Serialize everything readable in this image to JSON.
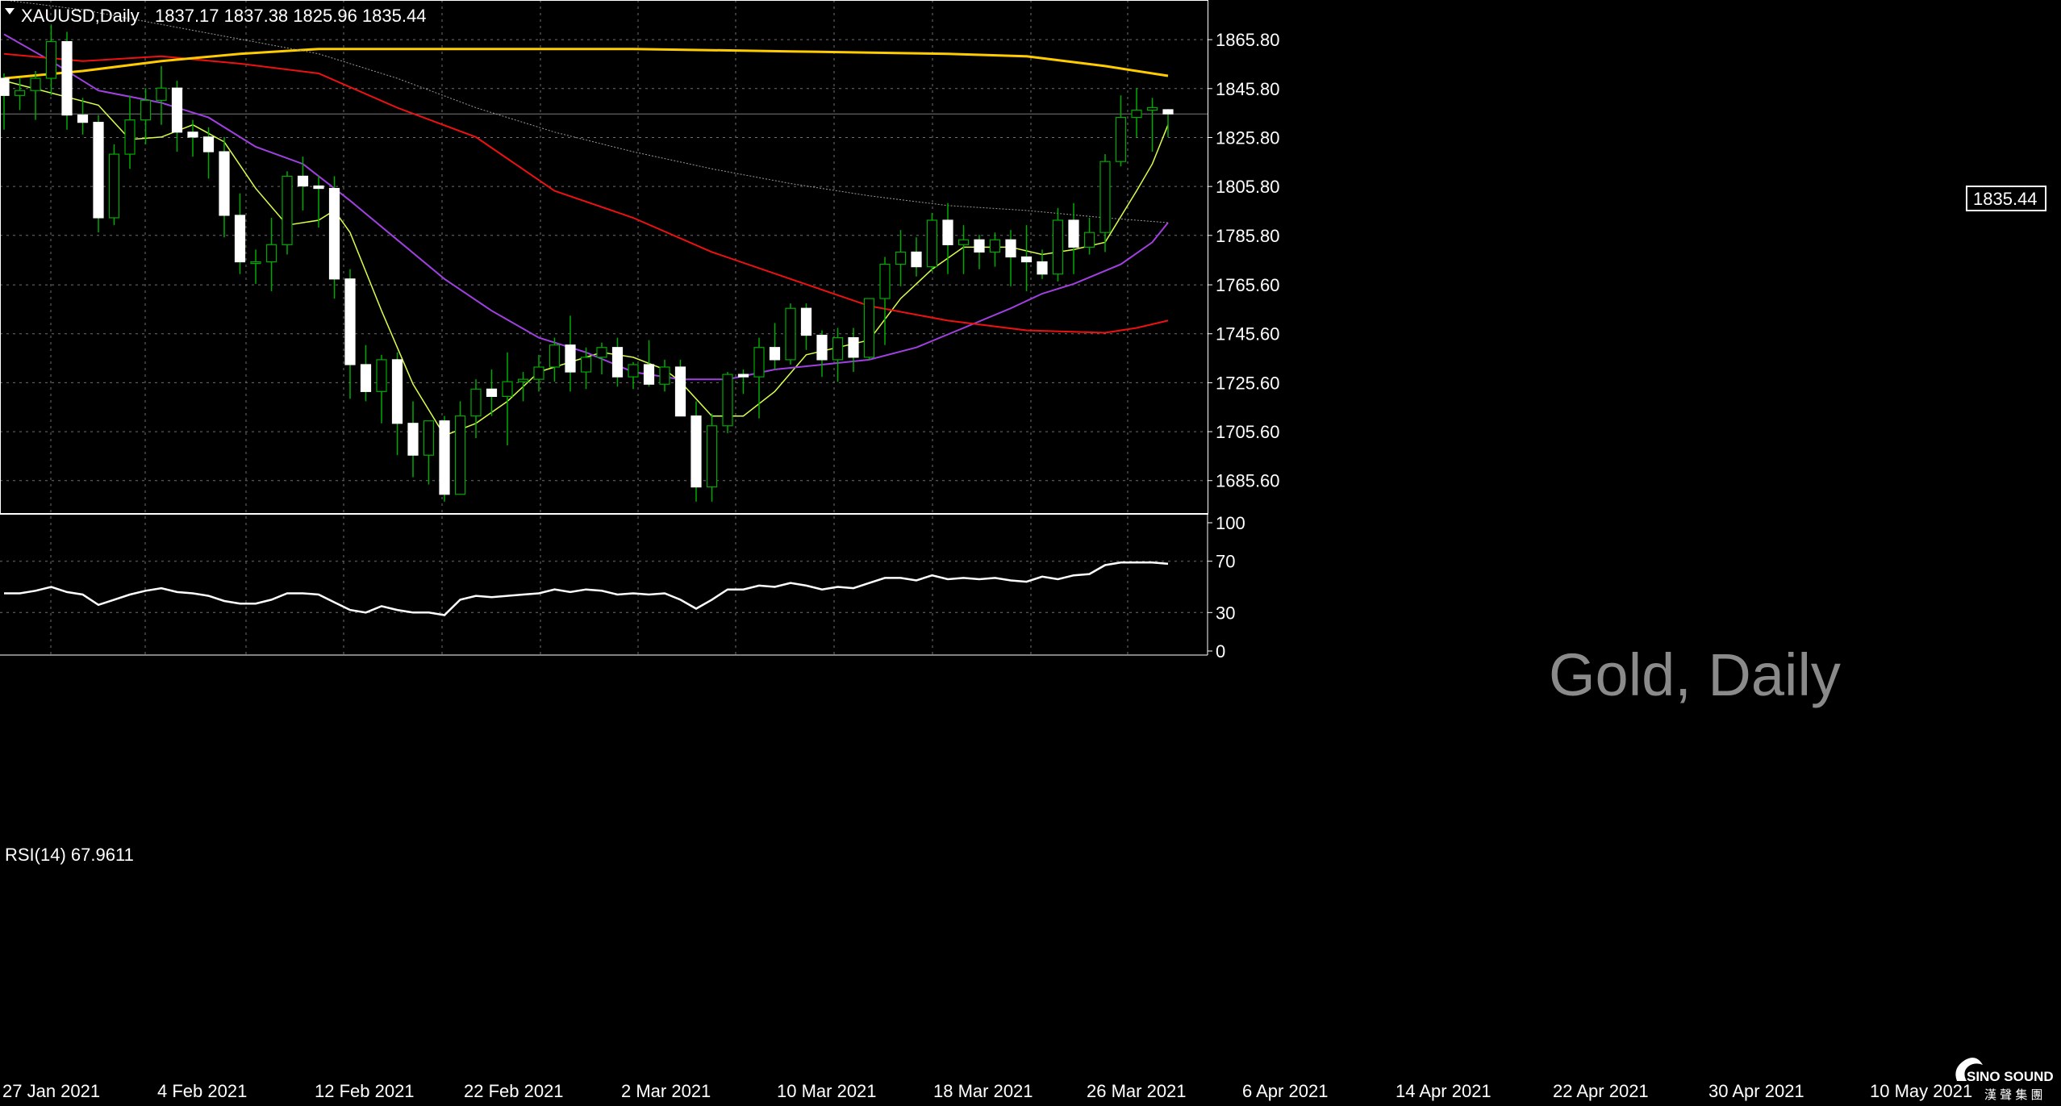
{
  "header": {
    "symbol": "XAUUSD,Daily",
    "ohlc": "1837.17 1837.38 1825.96 1835.44"
  },
  "price_tag": "1835.44",
  "watermark": "Gold, Daily",
  "rsi_header": "RSI(14) 67.9611",
  "logo": {
    "name": "SINO SOUND",
    "sub": "漢 聲 集 團"
  },
  "colors": {
    "background": "#000000",
    "grid": "#707070",
    "candle": "#ffffff",
    "wick": "#00aa00",
    "ma_yellow_thin": "#d8ff4a",
    "ma_purple": "#a040e0",
    "ma_red": "#ee1111",
    "ma_gold": "#ffcc00",
    "ma_gray": "#9a9a9a",
    "rsi": "#ffffff"
  },
  "chart_data": [
    {
      "type": "candlestick",
      "symbol": "XAUUSD",
      "timeframe": "Daily",
      "ylim": [
        1672,
        1882
      ],
      "price_ticks": [
        "1865.80",
        "1845.80",
        "1825.80",
        "1805.80",
        "1785.80",
        "1765.60",
        "1745.60",
        "1725.60",
        "1705.60",
        "1685.60"
      ],
      "date_labels": [
        "27 Jan 2021",
        "4 Feb 2021",
        "12 Feb 2021",
        "22 Feb 2021",
        "2 Mar 2021",
        "10 Mar 2021",
        "18 Mar 2021",
        "26 Mar 2021",
        "6 Apr 2021",
        "14 Apr 2021",
        "22 Apr 2021",
        "30 Apr 2021",
        "10 May 2021"
      ],
      "last_price": 1835.44,
      "candles": [
        [
          1850,
          1852,
          1829,
          1843
        ],
        [
          1843,
          1850,
          1837,
          1845
        ],
        [
          1845,
          1853,
          1833,
          1850
        ],
        [
          1850,
          1872,
          1843,
          1865
        ],
        [
          1865,
          1869,
          1829,
          1835
        ],
        [
          1835,
          1842,
          1827,
          1832
        ],
        [
          1832,
          1835,
          1787,
          1793
        ],
        [
          1793,
          1823,
          1790,
          1819
        ],
        [
          1819,
          1843,
          1813,
          1833
        ],
        [
          1833,
          1846,
          1823,
          1841
        ],
        [
          1841,
          1855,
          1831,
          1846
        ],
        [
          1846,
          1849,
          1820,
          1828
        ],
        [
          1828,
          1833,
          1818,
          1826
        ],
        [
          1826,
          1830,
          1809,
          1820
        ],
        [
          1820,
          1826,
          1785,
          1794
        ],
        [
          1794,
          1803,
          1770,
          1775
        ],
        [
          1775,
          1780,
          1766,
          1775
        ],
        [
          1775,
          1793,
          1763,
          1782
        ],
        [
          1782,
          1812,
          1778,
          1810
        ],
        [
          1810,
          1818,
          1796,
          1806
        ],
        [
          1806,
          1810,
          1789,
          1805
        ],
        [
          1805,
          1810,
          1760,
          1768
        ],
        [
          1768,
          1772,
          1719,
          1733
        ],
        [
          1733,
          1741,
          1718,
          1722
        ],
        [
          1722,
          1737,
          1709,
          1735
        ],
        [
          1735,
          1738,
          1696,
          1709
        ],
        [
          1709,
          1718,
          1687,
          1696
        ],
        [
          1696,
          1710,
          1684,
          1710
        ],
        [
          1710,
          1712,
          1677,
          1680
        ],
        [
          1680,
          1718,
          1682,
          1712
        ],
        [
          1712,
          1727,
          1703,
          1723
        ],
        [
          1723,
          1731,
          1712,
          1720
        ],
        [
          1720,
          1738,
          1700,
          1726
        ],
        [
          1726,
          1730,
          1718,
          1727
        ],
        [
          1727,
          1737,
          1722,
          1732
        ],
        [
          1732,
          1744,
          1726,
          1741
        ],
        [
          1741,
          1753,
          1722,
          1730
        ],
        [
          1730,
          1740,
          1723,
          1736
        ],
        [
          1736,
          1742,
          1729,
          1740
        ],
        [
          1740,
          1744,
          1724,
          1728
        ],
        [
          1728,
          1734,
          1723,
          1733
        ],
        [
          1733,
          1743,
          1724,
          1725
        ],
        [
          1725,
          1735,
          1722,
          1732
        ],
        [
          1732,
          1735,
          1713,
          1712
        ],
        [
          1712,
          1718,
          1677,
          1683
        ],
        [
          1683,
          1713,
          1677,
          1708
        ],
        [
          1708,
          1730,
          1705,
          1729
        ],
        [
          1729,
          1731,
          1721,
          1728
        ],
        [
          1728,
          1744,
          1711,
          1740
        ],
        [
          1740,
          1750,
          1731,
          1735
        ],
        [
          1735,
          1758,
          1733,
          1756
        ],
        [
          1756,
          1758,
          1739,
          1745
        ],
        [
          1745,
          1747,
          1728,
          1735
        ],
        [
          1735,
          1748,
          1726,
          1744
        ],
        [
          1744,
          1748,
          1730,
          1736
        ],
        [
          1736,
          1758,
          1735,
          1760
        ],
        [
          1760,
          1777,
          1741,
          1774
        ],
        [
          1774,
          1788,
          1765,
          1779
        ],
        [
          1779,
          1785,
          1769,
          1773
        ],
        [
          1773,
          1795,
          1771,
          1792
        ],
        [
          1792,
          1799,
          1770,
          1782
        ],
        [
          1782,
          1790,
          1770,
          1784
        ],
        [
          1784,
          1786,
          1772,
          1779
        ],
        [
          1779,
          1787,
          1773,
          1784
        ],
        [
          1784,
          1788,
          1765,
          1777
        ],
        [
          1777,
          1790,
          1763,
          1775
        ],
        [
          1775,
          1780,
          1768,
          1770
        ],
        [
          1770,
          1797,
          1767,
          1792
        ],
        [
          1792,
          1799,
          1770,
          1781
        ],
        [
          1781,
          1793,
          1778,
          1787
        ],
        [
          1787,
          1819,
          1779,
          1816
        ],
        [
          1816,
          1843,
          1814,
          1834
        ],
        [
          1834,
          1846,
          1826,
          1837
        ],
        [
          1837,
          1842,
          1820,
          1838
        ],
        [
          1837.17,
          1837.38,
          1825.96,
          1835.44
        ]
      ],
      "moving_averages": [
        {
          "color": "#d8ff4a",
          "values": [
            [
              0,
              1849
            ],
            [
              6,
              1839
            ],
            [
              8,
              1825
            ],
            [
              10,
              1826
            ],
            [
              12,
              1831
            ],
            [
              14,
              1824
            ],
            [
              16,
              1805
            ],
            [
              18,
              1790
            ],
            [
              20,
              1792
            ],
            [
              21,
              1796
            ],
            [
              22,
              1787
            ],
            [
              24,
              1755
            ],
            [
              26,
              1725
            ],
            [
              28,
              1704
            ],
            [
              30,
              1709
            ],
            [
              32,
              1718
            ],
            [
              34,
              1730
            ],
            [
              36,
              1734
            ],
            [
              38,
              1738
            ],
            [
              40,
              1736
            ],
            [
              42,
              1731
            ],
            [
              43,
              1726
            ],
            [
              45,
              1712
            ],
            [
              47,
              1712
            ],
            [
              49,
              1722
            ],
            [
              51,
              1737
            ],
            [
              53,
              1740
            ],
            [
              55,
              1743
            ],
            [
              57,
              1760
            ],
            [
              59,
              1772
            ],
            [
              61,
              1781
            ],
            [
              64,
              1781
            ],
            [
              66,
              1778
            ],
            [
              68,
              1780
            ],
            [
              70,
              1783
            ],
            [
              72,
              1804
            ],
            [
              73,
              1815
            ],
            [
              74,
              1831
            ]
          ]
        },
        {
          "color": "#a040e0",
          "values": [
            [
              0,
              1868
            ],
            [
              3,
              1857
            ],
            [
              6,
              1845
            ],
            [
              10,
              1840
            ],
            [
              13,
              1834
            ],
            [
              16,
              1822
            ],
            [
              19,
              1815
            ],
            [
              22,
              1800
            ],
            [
              25,
              1784
            ],
            [
              28,
              1768
            ],
            [
              31,
              1755
            ],
            [
              34,
              1744
            ],
            [
              37,
              1738
            ],
            [
              40,
              1730
            ],
            [
              43,
              1727
            ],
            [
              46,
              1727
            ],
            [
              49,
              1731
            ],
            [
              52,
              1733
            ],
            [
              55,
              1735
            ],
            [
              58,
              1740
            ],
            [
              61,
              1748
            ],
            [
              64,
              1756
            ],
            [
              66,
              1762
            ],
            [
              68,
              1766
            ],
            [
              71,
              1774
            ],
            [
              73,
              1783
            ],
            [
              74,
              1791
            ]
          ]
        },
        {
          "color": "#ee1111",
          "values": [
            [
              0,
              1860
            ],
            [
              5,
              1857
            ],
            [
              10,
              1859
            ],
            [
              15,
              1856
            ],
            [
              20,
              1852
            ],
            [
              25,
              1838
            ],
            [
              30,
              1826
            ],
            [
              35,
              1804
            ],
            [
              40,
              1793
            ],
            [
              45,
              1779
            ],
            [
              50,
              1768
            ],
            [
              55,
              1757
            ],
            [
              60,
              1751
            ],
            [
              65,
              1747
            ],
            [
              70,
              1746
            ],
            [
              72,
              1748
            ],
            [
              74,
              1751
            ]
          ]
        },
        {
          "color": "#ffcc00",
          "values": [
            [
              0,
              1850
            ],
            [
              5,
              1853
            ],
            [
              10,
              1857
            ],
            [
              15,
              1860
            ],
            [
              20,
              1862
            ],
            [
              30,
              1862
            ],
            [
              40,
              1862
            ],
            [
              50,
              1861
            ],
            [
              60,
              1860
            ],
            [
              65,
              1859
            ],
            [
              70,
              1855
            ],
            [
              74,
              1851
            ]
          ]
        },
        {
          "color": "#9a9a9a",
          "values": [
            [
              0,
              1882
            ],
            [
              5,
              1878
            ],
            [
              10,
              1872
            ],
            [
              15,
              1866
            ],
            [
              20,
              1860
            ],
            [
              25,
              1850
            ],
            [
              30,
              1838
            ],
            [
              35,
              1828
            ],
            [
              40,
              1820
            ],
            [
              45,
              1813
            ],
            [
              50,
              1807
            ],
            [
              55,
              1802
            ],
            [
              60,
              1798
            ],
            [
              65,
              1796
            ],
            [
              70,
              1793
            ],
            [
              74,
              1791
            ]
          ]
        }
      ]
    },
    {
      "type": "line",
      "name": "RSI(14)",
      "value": 67.9611,
      "ylim": [
        0,
        100
      ],
      "yticks": [
        100,
        70,
        30,
        0
      ],
      "values": [
        45,
        45,
        47,
        50,
        46,
        44,
        36,
        40,
        44,
        47,
        49,
        46,
        45,
        43,
        39,
        37,
        37,
        40,
        45,
        45,
        44,
        38,
        32,
        30,
        35,
        32,
        30,
        30,
        28,
        40,
        43,
        42,
        43,
        44,
        45,
        48,
        46,
        48,
        47,
        44,
        45,
        44,
        45,
        40,
        33,
        40,
        48,
        48,
        51,
        50,
        53,
        51,
        48,
        50,
        49,
        53,
        57,
        57,
        55,
        59,
        56,
        57,
        56,
        57,
        55,
        54,
        58,
        56,
        59,
        60,
        67,
        69,
        69,
        69,
        68
      ]
    }
  ]
}
